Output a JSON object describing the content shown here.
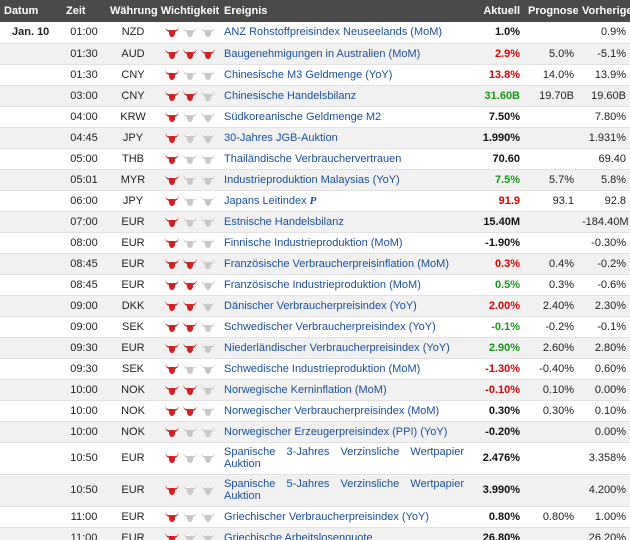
{
  "headers": {
    "date": "Datum",
    "time": "Zeit",
    "currency_importance": "Währung Wichtigkeit",
    "event": "Ereignis",
    "actual": "Aktuell",
    "forecast": "Prognose",
    "previous": "Vorherige"
  },
  "colors": {
    "bull_active": "#d42020",
    "bull_inactive": "#c8c8c8",
    "header_bg": "#4a4a4a"
  },
  "rows": [
    {
      "date": "Jan. 10",
      "time": "01:00",
      "currency": "NZD",
      "importance": 1,
      "event": "ANZ Rohstoffpreisindex Neuseelands (MoM)",
      "actual": "1.0%",
      "actual_color": "black",
      "forecast": "",
      "previous": "0.9%"
    },
    {
      "date": "",
      "time": "01:30",
      "currency": "AUD",
      "importance": 3,
      "event": "Baugenehmigungen in Australien (MoM)",
      "actual": "2.9%",
      "actual_color": "red",
      "forecast": "5.0%",
      "previous": "-5.1%"
    },
    {
      "date": "",
      "time": "01:30",
      "currency": "CNY",
      "importance": 1,
      "event": "Chinesische M3 Geldmenge (YoY)",
      "actual": "13.8%",
      "actual_color": "red",
      "forecast": "14.0%",
      "previous": "13.9%"
    },
    {
      "date": "",
      "time": "03:00",
      "currency": "CNY",
      "importance": 2,
      "event": "Chinesische Handelsbilanz",
      "actual": "31.60B",
      "actual_color": "green",
      "forecast": "19.70B",
      "previous": "19.60B"
    },
    {
      "date": "",
      "time": "04:00",
      "currency": "KRW",
      "importance": 1,
      "event": "Südkoreanische Geldmenge M2",
      "actual": "7.50%",
      "actual_color": "black",
      "forecast": "",
      "previous": "7.80%"
    },
    {
      "date": "",
      "time": "04:45",
      "currency": "JPY",
      "importance": 1,
      "event": "30-Jahres JGB-Auktion",
      "actual": "1.990%",
      "actual_color": "black",
      "forecast": "",
      "previous": "1.931%"
    },
    {
      "date": "",
      "time": "05:00",
      "currency": "THB",
      "importance": 1,
      "event": "Thailändische Verbrauchervertrauen",
      "actual": "70.60",
      "actual_color": "black",
      "forecast": "",
      "previous": "69.40"
    },
    {
      "date": "",
      "time": "05:01",
      "currency": "MYR",
      "importance": 1,
      "event": "Industrieproduktion Malaysias (YoY)",
      "actual": "7.5%",
      "actual_color": "green",
      "forecast": "5.7%",
      "previous": "5.8%"
    },
    {
      "date": "",
      "time": "06:00",
      "currency": "JPY",
      "importance": 1,
      "event": "Japans Leitindex",
      "event_badge": "P",
      "actual": "91.9",
      "actual_color": "red",
      "forecast": "93.1",
      "previous": "92.8"
    },
    {
      "date": "",
      "time": "07:00",
      "currency": "EUR",
      "importance": 1,
      "event": "Estnische Handelsbilanz",
      "actual": "15.40M",
      "actual_color": "black",
      "forecast": "",
      "previous": "-184.40M"
    },
    {
      "date": "",
      "time": "08:00",
      "currency": "EUR",
      "importance": 1,
      "event": "Finnische Industrieproduktion (MoM)",
      "actual": "-1.90%",
      "actual_color": "black",
      "forecast": "",
      "previous": "-0.30%"
    },
    {
      "date": "",
      "time": "08:45",
      "currency": "EUR",
      "importance": 2,
      "event": "Französische Verbraucherpreisinflation (MoM)",
      "actual": "0.3%",
      "actual_color": "red",
      "forecast": "0.4%",
      "previous": "-0.2%"
    },
    {
      "date": "",
      "time": "08:45",
      "currency": "EUR",
      "importance": 2,
      "event": "Französische Industrieproduktion (MoM)",
      "actual": "0.5%",
      "actual_color": "green",
      "forecast": "0.3%",
      "previous": "-0.6%"
    },
    {
      "date": "",
      "time": "09:00",
      "currency": "DKK",
      "importance": 2,
      "event": "Dänischer Verbraucherpreisindex (YoY)",
      "actual": "2.00%",
      "actual_color": "red",
      "forecast": "2.40%",
      "previous": "2.30%"
    },
    {
      "date": "",
      "time": "09:00",
      "currency": "SEK",
      "importance": 2,
      "event": "Schwedischer Verbraucherpreisindex (YoY)",
      "actual": "-0.1%",
      "actual_color": "green",
      "forecast": "-0.2%",
      "previous": "-0.1%"
    },
    {
      "date": "",
      "time": "09:30",
      "currency": "EUR",
      "importance": 2,
      "event": "Niederländischer Verbraucherpreisindex (YoY)",
      "actual": "2.90%",
      "actual_color": "green",
      "forecast": "2.60%",
      "previous": "2.80%"
    },
    {
      "date": "",
      "time": "09:30",
      "currency": "SEK",
      "importance": 1,
      "event": "Schwedische Industrieproduktion (MoM)",
      "actual": "-1.30%",
      "actual_color": "red",
      "forecast": "-0.40%",
      "previous": "0.60%"
    },
    {
      "date": "",
      "time": "10:00",
      "currency": "NOK",
      "importance": 2,
      "event": "Norwegische Kerninflation (MoM)",
      "actual": "-0.10%",
      "actual_color": "red",
      "forecast": "0.10%",
      "previous": "0.00%"
    },
    {
      "date": "",
      "time": "10:00",
      "currency": "NOK",
      "importance": 2,
      "event": "Norwegischer Verbraucherpreisindex (MoM)",
      "actual": "0.30%",
      "actual_color": "black",
      "forecast": "0.30%",
      "previous": "0.10%"
    },
    {
      "date": "",
      "time": "10:00",
      "currency": "NOK",
      "importance": 1,
      "event": "Norwegischer Erzeugerpreisindex (PPI) (YoY)",
      "actual": "-0.20%",
      "actual_color": "black",
      "forecast": "",
      "previous": "0.00%"
    },
    {
      "date": "",
      "time": "10:50",
      "currency": "EUR",
      "importance": 1,
      "event": "Spanische 3-Jahres Verzinsliche Wertpapier Auktion",
      "tall": true,
      "actual": "2.476%",
      "actual_color": "black",
      "forecast": "",
      "previous": "3.358%"
    },
    {
      "date": "",
      "time": "10:50",
      "currency": "EUR",
      "importance": 1,
      "event": "Spanische 5-Jahres Verzinsliche Wertpapier Auktion",
      "tall": true,
      "actual": "3.990%",
      "actual_color": "black",
      "forecast": "",
      "previous": "4.200%"
    },
    {
      "date": "",
      "time": "11:00",
      "currency": "EUR",
      "importance": 1,
      "event": "Griechischer Verbraucherpreisindex (YoY)",
      "actual": "0.80%",
      "actual_color": "black",
      "forecast": "0.80%",
      "previous": "1.00%"
    },
    {
      "date": "",
      "time": "11:00",
      "currency": "EUR",
      "importance": 1,
      "event": "Griechische Arbeitslosenquote",
      "actual": "26.80%",
      "actual_color": "black",
      "forecast": "",
      "previous": "26.20%"
    }
  ]
}
